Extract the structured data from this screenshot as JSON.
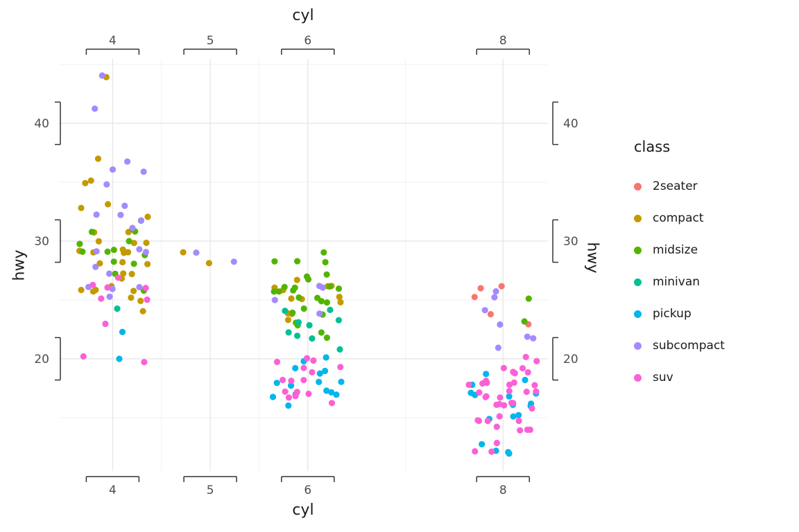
{
  "chart_data": {
    "type": "scatter",
    "x_title": "cyl",
    "y_title": "hwy",
    "x_ticks": [
      4,
      5,
      6,
      8
    ],
    "x_minor": [
      4.5,
      5.5,
      7
    ],
    "y_ticks": [
      20,
      30,
      40
    ],
    "y_minor": [
      15,
      25,
      35,
      45
    ],
    "xlim": [
      3.45,
      8.46
    ],
    "ylim": [
      10.47,
      45.47
    ],
    "grid": {
      "major": "#E4E4E4",
      "minor": "#F2F2F2",
      "on": true
    },
    "axis_color": "#333333",
    "tick_text_color": "#4D4D4D",
    "point_radius": 4.6,
    "jitter": {
      "width": 0.36,
      "height": 0.3
    },
    "bracket_halfwidth_x": 0.27,
    "bracket_halfwidth_y": 1.8,
    "legend": {
      "title": "class",
      "position": "right"
    },
    "classes": [
      {
        "name": "2seater",
        "color": "#F8766D"
      },
      {
        "name": "compact",
        "color": "#C49A00"
      },
      {
        "name": "midsize",
        "color": "#53B400"
      },
      {
        "name": "minivan",
        "color": "#00C094"
      },
      {
        "name": "pickup",
        "color": "#00B6EB"
      },
      {
        "name": "subcompact",
        "color": "#A58AFF"
      },
      {
        "name": "suv",
        "color": "#FB61D7"
      }
    ],
    "points": [
      [
        8,
        23,
        0
      ],
      [
        8,
        24,
        0
      ],
      [
        8,
        25,
        0
      ],
      [
        8,
        26,
        0
      ],
      [
        8,
        26,
        0
      ],
      [
        4,
        44,
        1
      ],
      [
        4,
        37,
        1
      ],
      [
        4,
        35,
        1
      ],
      [
        4,
        35,
        1
      ],
      [
        4,
        33,
        1
      ],
      [
        4,
        33,
        1
      ],
      [
        4,
        32,
        1
      ],
      [
        4,
        31,
        1
      ],
      [
        4,
        31,
        1
      ],
      [
        4,
        30,
        1
      ],
      [
        4,
        30,
        1
      ],
      [
        4,
        30,
        1
      ],
      [
        4,
        29,
        1
      ],
      [
        4,
        29,
        1
      ],
      [
        4,
        29,
        1
      ],
      [
        4,
        29,
        1
      ],
      [
        4,
        29,
        1
      ],
      [
        4,
        28,
        1
      ],
      [
        4,
        28,
        1
      ],
      [
        4,
        28,
        1
      ],
      [
        4,
        27,
        1
      ],
      [
        4,
        27,
        1
      ],
      [
        4,
        27,
        1
      ],
      [
        4,
        26,
        1
      ],
      [
        4,
        26,
        1
      ],
      [
        4,
        26,
        1
      ],
      [
        4,
        26,
        1
      ],
      [
        4,
        26,
        1
      ],
      [
        4,
        25,
        1
      ],
      [
        4,
        25,
        1
      ],
      [
        4,
        24,
        1
      ],
      [
        5,
        29,
        1
      ],
      [
        5,
        28,
        1
      ],
      [
        6,
        27,
        1
      ],
      [
        6,
        26,
        1
      ],
      [
        6,
        26,
        1
      ],
      [
        6,
        26,
        1
      ],
      [
        6,
        26,
        1
      ],
      [
        6,
        25,
        1
      ],
      [
        6,
        25,
        1
      ],
      [
        6,
        25,
        1
      ],
      [
        6,
        25,
        1
      ],
      [
        6,
        24,
        1
      ],
      [
        6,
        24,
        1
      ],
      [
        6,
        23,
        1
      ],
      [
        4,
        32,
        2
      ],
      [
        4,
        31,
        2
      ],
      [
        4,
        31,
        2
      ],
      [
        4,
        31,
        2
      ],
      [
        4,
        30,
        2
      ],
      [
        4,
        30,
        2
      ],
      [
        4,
        29,
        2
      ],
      [
        4,
        29,
        2
      ],
      [
        4,
        29,
        2
      ],
      [
        4,
        29,
        2
      ],
      [
        4,
        28,
        2
      ],
      [
        4,
        28,
        2
      ],
      [
        4,
        27,
        2
      ],
      [
        4,
        26,
        2
      ],
      [
        6,
        29,
        2
      ],
      [
        6,
        28,
        2
      ],
      [
        6,
        28,
        2
      ],
      [
        6,
        28,
        2
      ],
      [
        6,
        27,
        2
      ],
      [
        6,
        27,
        2
      ],
      [
        6,
        27,
        2
      ],
      [
        6,
        26,
        2
      ],
      [
        6,
        26,
        2
      ],
      [
        6,
        26,
        2
      ],
      [
        6,
        26,
        2
      ],
      [
        6,
        26,
        2
      ],
      [
        6,
        26,
        2
      ],
      [
        6,
        26,
        2
      ],
      [
        6,
        25,
        2
      ],
      [
        6,
        25,
        2
      ],
      [
        6,
        25,
        2
      ],
      [
        6,
        25,
        2
      ],
      [
        6,
        24,
        2
      ],
      [
        6,
        24,
        2
      ],
      [
        6,
        24,
        2
      ],
      [
        6,
        23,
        2
      ],
      [
        6,
        23,
        2
      ],
      [
        6,
        22,
        2
      ],
      [
        6,
        22,
        2
      ],
      [
        8,
        25,
        2
      ],
      [
        8,
        23,
        2
      ],
      [
        4,
        24,
        3
      ],
      [
        6,
        24,
        3
      ],
      [
        6,
        24,
        3
      ],
      [
        6,
        23,
        3
      ],
      [
        6,
        23,
        3
      ],
      [
        6,
        23,
        3
      ],
      [
        6,
        22,
        3
      ],
      [
        6,
        22,
        3
      ],
      [
        6,
        22,
        3
      ],
      [
        6,
        21,
        3
      ],
      [
        6,
        17,
        3
      ],
      [
        4,
        20,
        4
      ],
      [
        4,
        22,
        4
      ],
      [
        6,
        20,
        4
      ],
      [
        6,
        20,
        4
      ],
      [
        6,
        19,
        4
      ],
      [
        6,
        19,
        4
      ],
      [
        6,
        19,
        4
      ],
      [
        6,
        18,
        4
      ],
      [
        6,
        18,
        4
      ],
      [
        6,
        18,
        4
      ],
      [
        6,
        18,
        4
      ],
      [
        6,
        17,
        4
      ],
      [
        6,
        17,
        4
      ],
      [
        6,
        17,
        4
      ],
      [
        6,
        17,
        4
      ],
      [
        6,
        16,
        4
      ],
      [
        8,
        19,
        4
      ],
      [
        8,
        18,
        4
      ],
      [
        8,
        18,
        4
      ],
      [
        8,
        17,
        4
      ],
      [
        8,
        17,
        4
      ],
      [
        8,
        17,
        4
      ],
      [
        8,
        17,
        4
      ],
      [
        8,
        16,
        4
      ],
      [
        8,
        16,
        4
      ],
      [
        8,
        16,
        4
      ],
      [
        8,
        15,
        4
      ],
      [
        8,
        15,
        4
      ],
      [
        8,
        15,
        4
      ],
      [
        8,
        13,
        4
      ],
      [
        8,
        12,
        4
      ],
      [
        8,
        12,
        4
      ],
      [
        8,
        12,
        4
      ],
      [
        4,
        44,
        5
      ],
      [
        4,
        41,
        5
      ],
      [
        4,
        37,
        5
      ],
      [
        4,
        36,
        5
      ],
      [
        4,
        36,
        5
      ],
      [
        4,
        35,
        5
      ],
      [
        4,
        33,
        5
      ],
      [
        4,
        32,
        5
      ],
      [
        4,
        32,
        5
      ],
      [
        4,
        32,
        5
      ],
      [
        4,
        31,
        5
      ],
      [
        4,
        29,
        5
      ],
      [
        4,
        29,
        5
      ],
      [
        4,
        29,
        5
      ],
      [
        4,
        28,
        5
      ],
      [
        4,
        27,
        5
      ],
      [
        4,
        26,
        5
      ],
      [
        4,
        26,
        5
      ],
      [
        4,
        26,
        5
      ],
      [
        4,
        25,
        5
      ],
      [
        5,
        29,
        5
      ],
      [
        5,
        28,
        5
      ],
      [
        6,
        26,
        5
      ],
      [
        6,
        26,
        5
      ],
      [
        6,
        25,
        5
      ],
      [
        6,
        24,
        5
      ],
      [
        8,
        26,
        5
      ],
      [
        8,
        25,
        5
      ],
      [
        8,
        24,
        5
      ],
      [
        8,
        23,
        5
      ],
      [
        8,
        22,
        5
      ],
      [
        8,
        22,
        5
      ],
      [
        8,
        21,
        5
      ],
      [
        4,
        27,
        6
      ],
      [
        4,
        26,
        6
      ],
      [
        4,
        26,
        6
      ],
      [
        4,
        26,
        6
      ],
      [
        4,
        25,
        6
      ],
      [
        4,
        25,
        6
      ],
      [
        4,
        23,
        6
      ],
      [
        4,
        20,
        6
      ],
      [
        4,
        20,
        6
      ],
      [
        6,
        20,
        6
      ],
      [
        6,
        20,
        6
      ],
      [
        6,
        20,
        6
      ],
      [
        6,
        19,
        6
      ],
      [
        6,
        19,
        6
      ],
      [
        6,
        19,
        6
      ],
      [
        6,
        18,
        6
      ],
      [
        6,
        18,
        6
      ],
      [
        6,
        18,
        6
      ],
      [
        6,
        17,
        6
      ],
      [
        6,
        17,
        6
      ],
      [
        6,
        17,
        6
      ],
      [
        6,
        17,
        6
      ],
      [
        6,
        17,
        6
      ],
      [
        6,
        16,
        6
      ],
      [
        8,
        20,
        6
      ],
      [
        8,
        20,
        6
      ],
      [
        8,
        19,
        6
      ],
      [
        8,
        19,
        6
      ],
      [
        8,
        19,
        6
      ],
      [
        8,
        19,
        6
      ],
      [
        8,
        19,
        6
      ],
      [
        8,
        18,
        6
      ],
      [
        8,
        18,
        6
      ],
      [
        8,
        18,
        6
      ],
      [
        8,
        18,
        6
      ],
      [
        8,
        18,
        6
      ],
      [
        8,
        18,
        6
      ],
      [
        8,
        18,
        6
      ],
      [
        8,
        17,
        6
      ],
      [
        8,
        17,
        6
      ],
      [
        8,
        17,
        6
      ],
      [
        8,
        17,
        6
      ],
      [
        8,
        17,
        6
      ],
      [
        8,
        17,
        6
      ],
      [
        8,
        17,
        6
      ],
      [
        8,
        16,
        6
      ],
      [
        8,
        16,
        6
      ],
      [
        8,
        16,
        6
      ],
      [
        8,
        16,
        6
      ],
      [
        8,
        16,
        6
      ],
      [
        8,
        16,
        6
      ],
      [
        8,
        15,
        6
      ],
      [
        8,
        15,
        6
      ],
      [
        8,
        15,
        6
      ],
      [
        8,
        15,
        6
      ],
      [
        8,
        15,
        6
      ],
      [
        8,
        14,
        6
      ],
      [
        8,
        14,
        6
      ],
      [
        8,
        14,
        6
      ],
      [
        8,
        14,
        6
      ],
      [
        8,
        13,
        6
      ],
      [
        8,
        12,
        6
      ],
      [
        8,
        12,
        6
      ]
    ]
  }
}
